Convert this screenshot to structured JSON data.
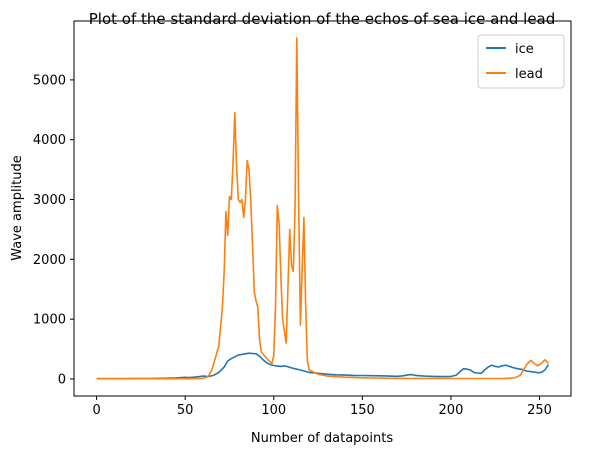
{
  "chart_data": {
    "type": "line",
    "title": "Plot of the standard deviation of the echos of sea ice and lead",
    "xlabel": "Number of datapoints",
    "ylabel": "Wave amplitude",
    "xlim": [
      -12.75,
      267.75
    ],
    "ylim": [
      -285,
      5985
    ],
    "xticks": [
      0,
      50,
      100,
      150,
      200,
      250
    ],
    "yticks": [
      0,
      1000,
      2000,
      3000,
      4000,
      5000
    ],
    "grid": false,
    "legend_position": "top-right",
    "colors": {
      "ice": "#1f77b4",
      "lead": "#ff7f0e"
    },
    "series": [
      {
        "name": "ice",
        "points": [
          [
            0,
            5
          ],
          [
            10,
            5
          ],
          [
            20,
            6
          ],
          [
            30,
            8
          ],
          [
            40,
            12
          ],
          [
            45,
            18
          ],
          [
            48,
            22
          ],
          [
            50,
            28
          ],
          [
            52,
            25
          ],
          [
            55,
            30
          ],
          [
            58,
            40
          ],
          [
            60,
            48
          ],
          [
            63,
            40
          ],
          [
            66,
            60
          ],
          [
            69,
            110
          ],
          [
            72,
            200
          ],
          [
            74,
            300
          ],
          [
            76,
            340
          ],
          [
            78,
            370
          ],
          [
            80,
            400
          ],
          [
            82,
            410
          ],
          [
            84,
            420
          ],
          [
            86,
            430
          ],
          [
            88,
            425
          ],
          [
            90,
            420
          ],
          [
            92,
            380
          ],
          [
            94,
            320
          ],
          [
            96,
            270
          ],
          [
            98,
            240
          ],
          [
            100,
            225
          ],
          [
            102,
            215
          ],
          [
            104,
            210
          ],
          [
            106,
            218
          ],
          [
            108,
            205
          ],
          [
            110,
            185
          ],
          [
            112,
            170
          ],
          [
            115,
            150
          ],
          [
            118,
            125
          ],
          [
            120,
            110
          ],
          [
            125,
            95
          ],
          [
            130,
            80
          ],
          [
            135,
            70
          ],
          [
            140,
            65
          ],
          [
            145,
            60
          ],
          [
            150,
            58
          ],
          [
            155,
            55
          ],
          [
            160,
            52
          ],
          [
            165,
            48
          ],
          [
            170,
            45
          ],
          [
            173,
            52
          ],
          [
            176,
            70
          ],
          [
            178,
            72
          ],
          [
            180,
            60
          ],
          [
            185,
            48
          ],
          [
            190,
            42
          ],
          [
            195,
            40
          ],
          [
            200,
            42
          ],
          [
            203,
            65
          ],
          [
            205,
            120
          ],
          [
            207,
            170
          ],
          [
            209,
            165
          ],
          [
            211,
            150
          ],
          [
            213,
            110
          ],
          [
            215,
            100
          ],
          [
            217,
            95
          ],
          [
            219,
            150
          ],
          [
            221,
            200
          ],
          [
            223,
            230
          ],
          [
            225,
            210
          ],
          [
            227,
            200
          ],
          [
            229,
            220
          ],
          [
            231,
            230
          ],
          [
            233,
            210
          ],
          [
            235,
            190
          ],
          [
            238,
            170
          ],
          [
            240,
            160
          ],
          [
            243,
            130
          ],
          [
            246,
            120
          ],
          [
            249,
            105
          ],
          [
            251,
            110
          ],
          [
            253,
            150
          ],
          [
            255,
            240
          ]
        ]
      },
      {
        "name": "lead",
        "points": [
          [
            0,
            5
          ],
          [
            20,
            5
          ],
          [
            40,
            5
          ],
          [
            55,
            5
          ],
          [
            60,
            10
          ],
          [
            63,
            40
          ],
          [
            65,
            150
          ],
          [
            67,
            350
          ],
          [
            69,
            550
          ],
          [
            71,
            1200
          ],
          [
            72,
            1800
          ],
          [
            73,
            2800
          ],
          [
            74,
            2400
          ],
          [
            75,
            3050
          ],
          [
            76,
            3000
          ],
          [
            77,
            3600
          ],
          [
            78,
            4450
          ],
          [
            79,
            3550
          ],
          [
            80,
            3000
          ],
          [
            81,
            2950
          ],
          [
            82,
            3000
          ],
          [
            83,
            2700
          ],
          [
            84,
            3000
          ],
          [
            85,
            3650
          ],
          [
            86,
            3500
          ],
          [
            87,
            3000
          ],
          [
            88,
            2250
          ],
          [
            89,
            1450
          ],
          [
            90,
            1300
          ],
          [
            91,
            1200
          ],
          [
            92,
            650
          ],
          [
            93,
            450
          ],
          [
            95,
            380
          ],
          [
            97,
            310
          ],
          [
            99,
            260
          ],
          [
            100,
            400
          ],
          [
            101,
            1200
          ],
          [
            102,
            2900
          ],
          [
            103,
            2600
          ],
          [
            104,
            1700
          ],
          [
            105,
            1000
          ],
          [
            106,
            800
          ],
          [
            107,
            600
          ],
          [
            108,
            1500
          ],
          [
            109,
            2500
          ],
          [
            110,
            1900
          ],
          [
            111,
            1800
          ],
          [
            112,
            2800
          ],
          [
            113,
            5700
          ],
          [
            114,
            3000
          ],
          [
            115,
            900
          ],
          [
            116,
            1800
          ],
          [
            117,
            2700
          ],
          [
            118,
            1200
          ],
          [
            119,
            300
          ],
          [
            120,
            150
          ],
          [
            125,
            80
          ],
          [
            130,
            50
          ],
          [
            140,
            30
          ],
          [
            150,
            20
          ],
          [
            170,
            10
          ],
          [
            200,
            8
          ],
          [
            230,
            8
          ],
          [
            236,
            20
          ],
          [
            239,
            60
          ],
          [
            241,
            150
          ],
          [
            243,
            250
          ],
          [
            245,
            310
          ],
          [
            247,
            260
          ],
          [
            249,
            220
          ],
          [
            251,
            260
          ],
          [
            253,
            320
          ],
          [
            255,
            260
          ]
        ]
      }
    ]
  }
}
